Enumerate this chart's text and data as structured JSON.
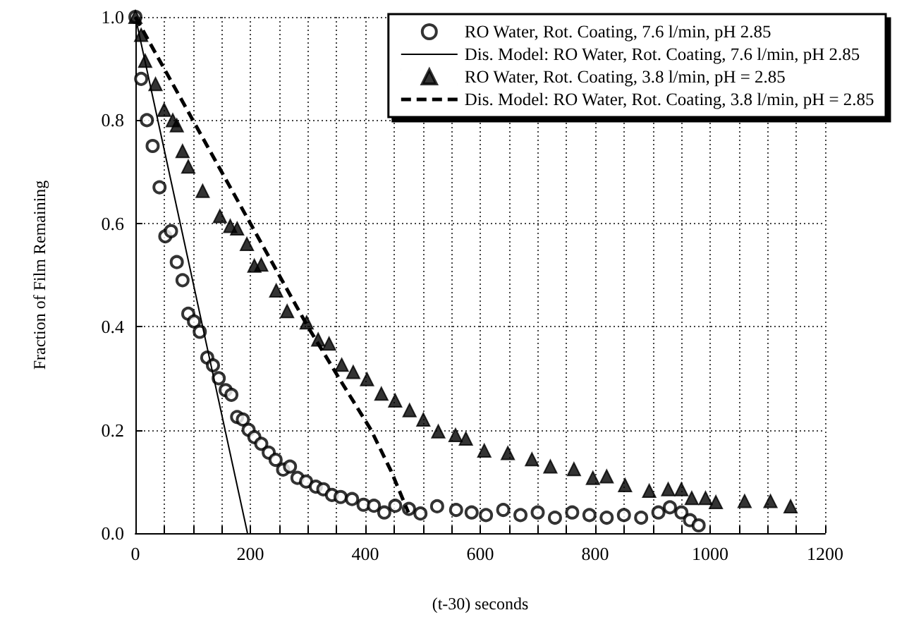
{
  "chart_data": {
    "type": "scatter",
    "xlabel": "(t-30) seconds",
    "ylabel": "Fraction of Film Remaining",
    "xlim": [
      0,
      1200
    ],
    "ylim": [
      0,
      1
    ],
    "xticks": [
      0,
      {
        "value": 50,
        "label": null
      },
      {
        "value": 100,
        "label": null
      },
      {
        "value": 150,
        "label": null
      },
      200,
      {
        "value": 250,
        "label": null
      },
      {
        "value": 300,
        "label": null
      },
      {
        "value": 350,
        "label": null
      },
      400,
      {
        "value": 450,
        "label": null
      },
      {
        "value": 500,
        "label": null
      },
      {
        "value": 550,
        "label": null
      },
      600,
      {
        "value": 650,
        "label": null
      },
      {
        "value": 700,
        "label": null
      },
      {
        "value": 750,
        "label": null
      },
      800,
      {
        "value": 850,
        "label": null
      },
      {
        "value": 900,
        "label": null
      },
      {
        "value": 950,
        "label": null
      },
      1000,
      {
        "value": 1050,
        "label": null
      },
      {
        "value": 1100,
        "label": null
      },
      {
        "value": 1150,
        "label": null
      },
      1200
    ],
    "yticks": [
      {
        "value": 0,
        "label": "0.0"
      },
      {
        "value": 0.2,
        "label": "0.2"
      },
      {
        "value": 0.4,
        "label": "0.4"
      },
      {
        "value": 0.6,
        "label": "0.6"
      },
      {
        "value": 0.8,
        "label": "0.8"
      },
      {
        "value": 1,
        "label": "1.0"
      }
    ],
    "grid": true,
    "legend": "top right",
    "series": [
      {
        "name": "RO Water, Rot. Coating, 7.6 l/min, pH 2.85",
        "marker": "circle",
        "color": "#000000",
        "x": [
          0,
          10,
          20,
          30,
          42,
          52,
          62,
          72,
          82,
          92,
          102,
          112,
          125,
          135,
          145,
          157,
          167,
          177,
          187,
          197,
          207,
          219,
          232,
          244,
          257,
          269,
          282,
          297,
          314,
          327,
          342,
          357,
          377,
          397,
          415,
          433,
          452,
          476,
          496,
          525,
          558,
          585,
          610,
          640,
          670,
          700,
          730,
          760,
          790,
          820,
          850,
          880,
          910,
          930,
          950,
          965,
          980
        ],
        "values": [
          1.0,
          0.88,
          0.8,
          0.75,
          0.67,
          0.575,
          0.585,
          0.525,
          0.49,
          0.425,
          0.41,
          0.39,
          0.34,
          0.325,
          0.3,
          0.277,
          0.268,
          0.225,
          0.22,
          0.2,
          0.186,
          0.173,
          0.156,
          0.142,
          0.123,
          0.129,
          0.107,
          0.1,
          0.09,
          0.085,
          0.074,
          0.07,
          0.066,
          0.055,
          0.053,
          0.04,
          0.053,
          0.047,
          0.038,
          0.052,
          0.045,
          0.04,
          0.035,
          0.045,
          0.035,
          0.04,
          0.03,
          0.04,
          0.035,
          0.03,
          0.035,
          0.03,
          0.04,
          0.05,
          0.04,
          0.025,
          0.015
        ]
      },
      {
        "name": "Dis. Model: RO Water, Rot. Coating, 7.6 l/min, pH 2.85",
        "type": "line",
        "marker": "none",
        "line_style": "solid",
        "color": "#000000",
        "x": [
          0,
          195
        ],
        "values": [
          1.0,
          0
        ]
      },
      {
        "name": "RO Water, Rot. Coating, 3.8 l/min, pH = 2.85",
        "marker": "triangle",
        "color": "#000000",
        "x": [
          0,
          10,
          17,
          35,
          50,
          65,
          72,
          82,
          92,
          117,
          147,
          165,
          177,
          194,
          207,
          219,
          245,
          264,
          298,
          318,
          337,
          359,
          379,
          403,
          428,
          452,
          477,
          501,
          527,
          557,
          575,
          607,
          648,
          690,
          722,
          763,
          796,
          820,
          852,
          894,
          927,
          950,
          968,
          992,
          1010,
          1060,
          1105,
          1140
        ],
        "values": [
          1.0,
          0.965,
          0.915,
          0.87,
          0.82,
          0.8,
          0.79,
          0.74,
          0.71,
          0.663,
          0.614,
          0.595,
          0.59,
          0.56,
          0.518,
          0.52,
          0.47,
          0.43,
          0.408,
          0.375,
          0.367,
          0.326,
          0.312,
          0.298,
          0.27,
          0.257,
          0.238,
          0.22,
          0.197,
          0.19,
          0.183,
          0.16,
          0.155,
          0.143,
          0.129,
          0.124,
          0.107,
          0.11,
          0.093,
          0.082,
          0.085,
          0.085,
          0.068,
          0.068,
          0.06,
          0.062,
          0.062,
          0.052
        ]
      },
      {
        "name": "Dis. Model: RO Water, Rot. Coating, 3.8 l/min, pH = 2.85",
        "type": "line",
        "marker": "none",
        "line_style": "dashed",
        "color": "#000000",
        "x": [
          0,
          100,
          200,
          300,
          360,
          410,
          445,
          475
        ],
        "values": [
          1.0,
          0.8,
          0.6,
          0.4,
          0.29,
          0.2,
          0.12,
          0.04
        ]
      }
    ]
  }
}
